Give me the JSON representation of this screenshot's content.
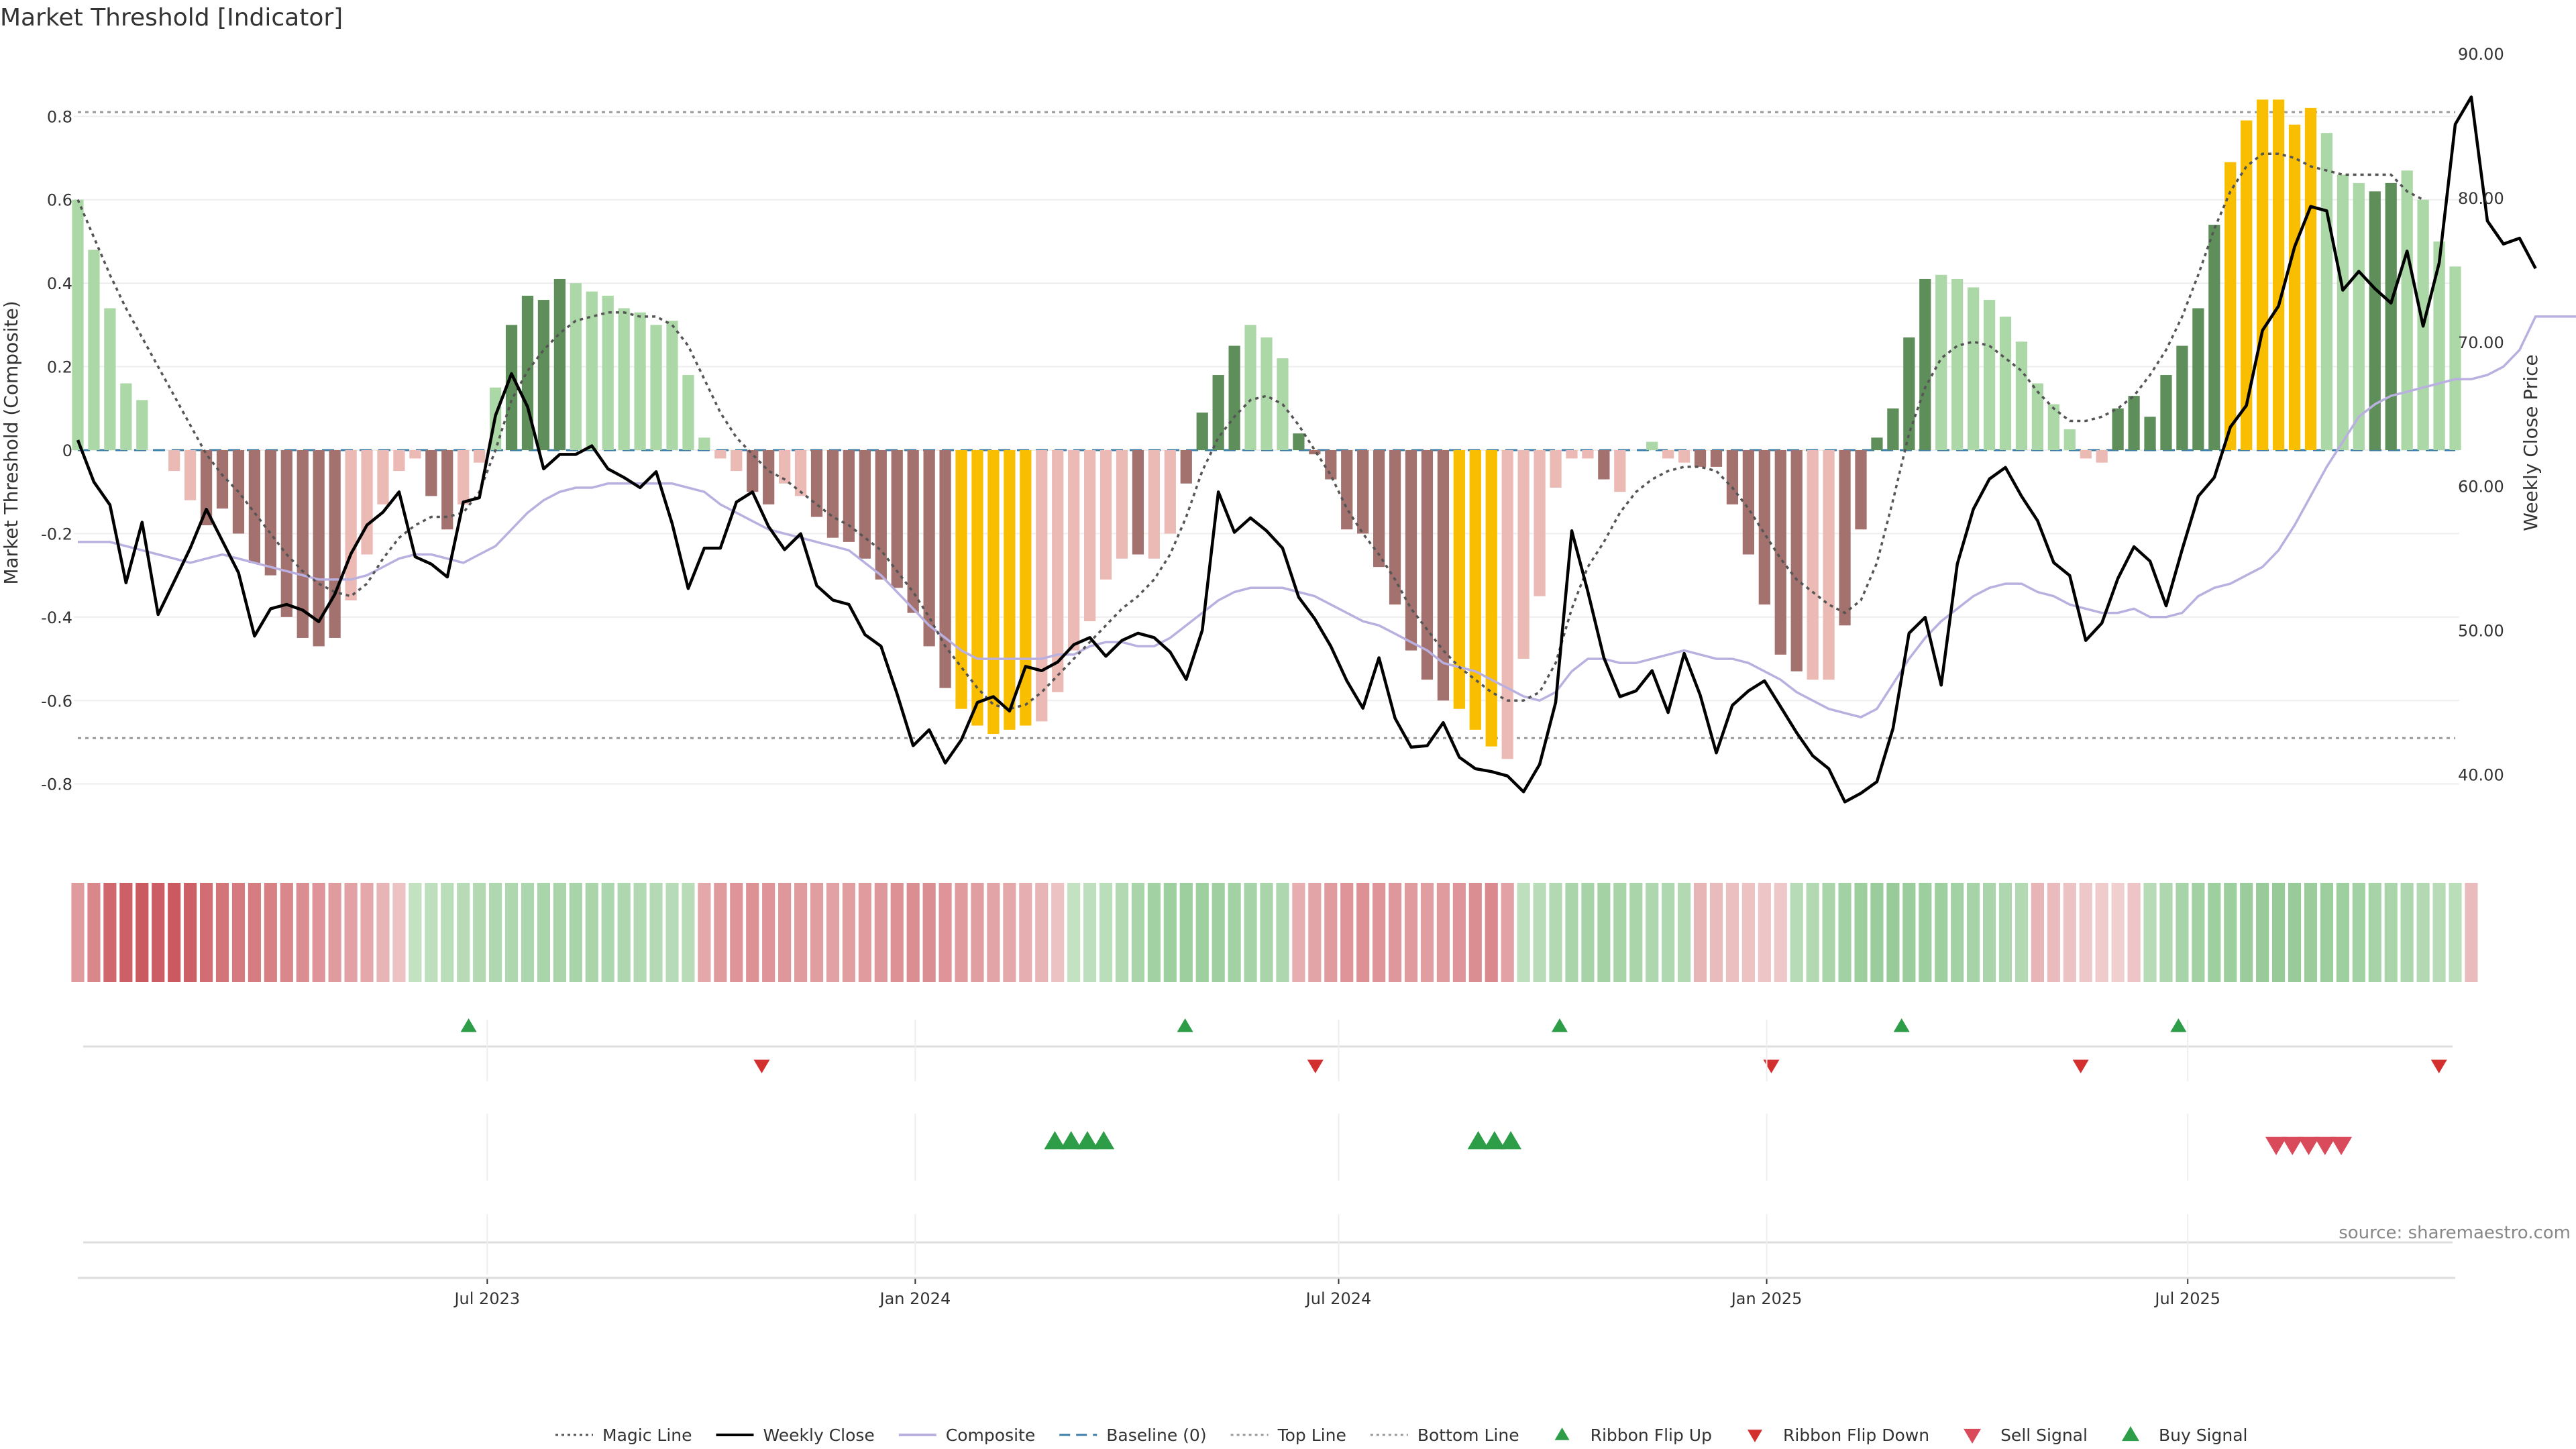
{
  "chart_data": {
    "type": "bar",
    "title": "Market Threshold [Indicator]",
    "ylabel_left": "Market Threshold (Composite)",
    "ylabel_right": "Weekly Close Price",
    "source": "source: sharemaestro.com",
    "x_axis": {
      "start": "2023-01-06",
      "end": "2025-10-24",
      "ticks": [
        {
          "date": "2023-07-01",
          "label": "Jul 2023"
        },
        {
          "date": "2024-01-01",
          "label": "Jan 2024"
        },
        {
          "date": "2024-07-01",
          "label": "Jul 2024"
        },
        {
          "date": "2025-01-01",
          "label": "Jan 2025"
        },
        {
          "date": "2025-07-01",
          "label": "Jul 2025"
        }
      ]
    },
    "y_left": {
      "ylim": [
        -0.95,
        0.95
      ],
      "ticks": [
        "-0.8",
        "-0.6",
        "-0.4",
        "-0.2",
        "0",
        "0.2",
        "0.4",
        "0.6",
        "0.8"
      ]
    },
    "y_right": {
      "ylim": [
        35,
        90
      ],
      "ticks": [
        "40.00",
        "50.00",
        "60.00",
        "70.00",
        "80.00",
        "90.00"
      ]
    },
    "top_line": 0.81,
    "bottom_line": -0.69,
    "legend": [
      {
        "name": "Magic Line",
        "style": "dotted",
        "color": "#555555"
      },
      {
        "name": "Weekly Close",
        "style": "solid",
        "color": "#000000"
      },
      {
        "name": "Composite",
        "style": "solid",
        "color": "#b9b0e0"
      },
      {
        "name": "Baseline (0)",
        "style": "dashed",
        "color": "#3d7fa6"
      },
      {
        "name": "Top Line",
        "style": "dotted",
        "color": "#999999"
      },
      {
        "name": "Bottom Line",
        "style": "dotted",
        "color": "#999999"
      },
      {
        "name": "Ribbon Flip Up",
        "style": "triangle-up",
        "color": "#2e9d48"
      },
      {
        "name": "Ribbon Flip Down",
        "style": "triangle-down",
        "color": "#d32f2f"
      },
      {
        "name": "Sell Signal",
        "style": "triangle-down-big",
        "color": "#d94a5a"
      },
      {
        "name": "Buy Signal",
        "style": "triangle-up-big",
        "color": "#2e9d48"
      }
    ],
    "colors": {
      "strong_pos": "#5e8f5a",
      "weak_pos": "#acd8a8",
      "strong_neg": "#a3716e",
      "weak_neg": "#ecbab5",
      "extreme": "#f9be00"
    },
    "histogram": [
      0.6,
      0.48,
      0.34,
      0.16,
      0.12,
      0.0,
      -0.05,
      -0.12,
      -0.18,
      -0.14,
      -0.2,
      -0.27,
      -0.3,
      -0.4,
      -0.45,
      -0.47,
      -0.45,
      -0.36,
      -0.25,
      -0.13,
      -0.05,
      -0.02,
      -0.11,
      -0.19,
      -0.13,
      -0.03,
      0.15,
      0.3,
      0.37,
      0.36,
      0.41,
      0.4,
      0.38,
      0.37,
      0.34,
      0.33,
      0.3,
      0.31,
      0.18,
      0.03,
      -0.02,
      -0.05,
      -0.1,
      -0.13,
      -0.08,
      -0.11,
      -0.16,
      -0.21,
      -0.22,
      -0.26,
      -0.31,
      -0.33,
      -0.39,
      -0.47,
      -0.57,
      -0.62,
      -0.66,
      -0.68,
      -0.67,
      -0.66,
      -0.65,
      -0.58,
      -0.48,
      -0.41,
      -0.31,
      -0.26,
      -0.25,
      -0.26,
      -0.2,
      -0.08,
      0.09,
      0.18,
      0.25,
      0.3,
      0.27,
      0.22,
      0.04,
      -0.01,
      -0.07,
      -0.19,
      -0.2,
      -0.28,
      -0.37,
      -0.48,
      -0.55,
      -0.6,
      -0.62,
      -0.67,
      -0.71,
      -0.74,
      -0.5,
      -0.35,
      -0.09,
      -0.02,
      -0.02,
      -0.07,
      -0.1,
      0.0,
      0.02,
      -0.02,
      -0.03,
      -0.04,
      -0.04,
      -0.13,
      -0.25,
      -0.37,
      -0.49,
      -0.53,
      -0.55,
      -0.55,
      -0.42,
      -0.19,
      0.03,
      0.1,
      0.27,
      0.41,
      0.42,
      0.41,
      0.39,
      0.36,
      0.32,
      0.26,
      0.16,
      0.11,
      0.05,
      -0.02,
      -0.03,
      0.1,
      0.13,
      0.08,
      0.18,
      0.25,
      0.34,
      0.54,
      0.69,
      0.79,
      0.84,
      0.84,
      0.78,
      0.82,
      0.76,
      0.66,
      0.64,
      0.62,
      0.64,
      0.67,
      0.6,
      0.5,
      0.44
    ],
    "histogram_color_codes": "WWWWWNWWSSSSSSSSSWWWWWSSWWWSSSSWWWWWWWWWWWSSWWSSSSSSSSSEEEEEWWWWWWSWWSSSSWWWSSSSSSSSSSEEEWWWWWWSWSWWWSSSSSSSWWSSSSSSWWWWWWWWWWWSSSSSSSEEEEEEWWWSSWW",
    "weekly_close": [
      63.2,
      60.3,
      58.7,
      53.3,
      57.5,
      51.1,
      53.4,
      55.7,
      58.4,
      56.2,
      54.0,
      49.6,
      51.5,
      51.8,
      51.4,
      50.6,
      52.5,
      55.3,
      57.3,
      58.2,
      59.6,
      55.1,
      54.6,
      53.7,
      58.9,
      59.2,
      64.9,
      67.8,
      65.5,
      61.2,
      62.2,
      62.2,
      62.8,
      61.2,
      60.6,
      59.9,
      61.0,
      57.4,
      52.9,
      55.7,
      55.7,
      58.9,
      59.6,
      57.2,
      55.6,
      56.7,
      53.1,
      52.1,
      51.8,
      49.7,
      48.9,
      45.6,
      42.0,
      43.1,
      40.8,
      42.4,
      45.0,
      45.4,
      44.4,
      47.5,
      47.2,
      47.8,
      49.0,
      49.5,
      48.2,
      49.3,
      49.8,
      49.5,
      48.5,
      46.6,
      50.0,
      59.6,
      56.8,
      57.8,
      56.9,
      55.7,
      52.3,
      50.8,
      48.9,
      46.5,
      44.6,
      48.1,
      43.9,
      41.9,
      42.0,
      43.6,
      41.2,
      40.4,
      40.2,
      39.9,
      38.8,
      40.7,
      45.0,
      56.9,
      52.7,
      48.1,
      45.4,
      45.8,
      47.2,
      44.3,
      48.4,
      45.5,
      41.5,
      44.8,
      45.8,
      46.5,
      44.7,
      42.9,
      41.3,
      40.4,
      38.1,
      38.7,
      39.5,
      43.2,
      49.8,
      50.9,
      46.2,
      54.6,
      58.4,
      60.5,
      61.3,
      59.3,
      57.6,
      54.7,
      53.8,
      49.3,
      50.5,
      53.6,
      55.8,
      54.8,
      51.7,
      55.6,
      59.3,
      60.6,
      64.1,
      65.6,
      70.8,
      72.5,
      76.6,
      79.4,
      79.1,
      73.6,
      74.9,
      73.7,
      72.7,
      76.3,
      71.1,
      75.5,
      85.1,
      87.0,
      78.4,
      76.8,
      77.2,
      75.1
    ],
    "composite": [
      -0.22,
      -0.22,
      -0.22,
      -0.23,
      -0.24,
      -0.25,
      -0.26,
      -0.27,
      -0.26,
      -0.25,
      -0.26,
      -0.27,
      -0.28,
      -0.29,
      -0.3,
      -0.31,
      -0.31,
      -0.31,
      -0.3,
      -0.28,
      -0.26,
      -0.25,
      -0.25,
      -0.26,
      -0.27,
      -0.25,
      -0.23,
      -0.19,
      -0.15,
      -0.12,
      -0.1,
      -0.09,
      -0.09,
      -0.08,
      -0.08,
      -0.08,
      -0.08,
      -0.08,
      -0.09,
      -0.1,
      -0.13,
      -0.15,
      -0.17,
      -0.19,
      -0.2,
      -0.21,
      -0.22,
      -0.23,
      -0.24,
      -0.27,
      -0.3,
      -0.34,
      -0.38,
      -0.42,
      -0.45,
      -0.48,
      -0.5,
      -0.5,
      -0.5,
      -0.5,
      -0.5,
      -0.49,
      -0.49,
      -0.47,
      -0.46,
      -0.46,
      -0.47,
      -0.47,
      -0.45,
      -0.42,
      -0.39,
      -0.36,
      -0.34,
      -0.33,
      -0.33,
      -0.33,
      -0.34,
      -0.35,
      -0.37,
      -0.39,
      -0.41,
      -0.42,
      -0.44,
      -0.46,
      -0.48,
      -0.51,
      -0.52,
      -0.53,
      -0.55,
      -0.57,
      -0.59,
      -0.6,
      -0.58,
      -0.53,
      -0.5,
      -0.5,
      -0.51,
      -0.51,
      -0.5,
      -0.49,
      -0.48,
      -0.49,
      -0.5,
      -0.5,
      -0.51,
      -0.53,
      -0.55,
      -0.58,
      -0.6,
      -0.62,
      -0.63,
      -0.64,
      -0.62,
      -0.56,
      -0.5,
      -0.45,
      -0.41,
      -0.38,
      -0.35,
      -0.33,
      -0.32,
      -0.32,
      -0.34,
      -0.35,
      -0.37,
      -0.38,
      -0.39,
      -0.39,
      -0.38,
      -0.4,
      -0.4,
      -0.39,
      -0.35,
      -0.33,
      -0.32,
      -0.3,
      -0.28,
      -0.24,
      -0.18,
      -0.11,
      -0.04,
      0.02,
      0.08,
      0.11,
      0.13,
      0.14,
      0.15,
      0.16,
      0.17,
      0.17,
      0.18,
      0.2,
      0.24,
      0.32,
      0.32,
      0.32,
      0.32
    ],
    "magic_line": [
      0.6,
      0.51,
      0.42,
      0.34,
      0.27,
      0.2,
      0.13,
      0.06,
      -0.01,
      -0.06,
      -0.1,
      -0.15,
      -0.2,
      -0.25,
      -0.29,
      -0.32,
      -0.34,
      -0.35,
      -0.32,
      -0.26,
      -0.21,
      -0.18,
      -0.16,
      -0.16,
      -0.15,
      -0.1,
      0.0,
      0.12,
      0.19,
      0.24,
      0.28,
      0.31,
      0.32,
      0.33,
      0.33,
      0.32,
      0.32,
      0.3,
      0.25,
      0.17,
      0.09,
      0.03,
      -0.01,
      -0.05,
      -0.07,
      -0.1,
      -0.13,
      -0.16,
      -0.18,
      -0.21,
      -0.24,
      -0.29,
      -0.34,
      -0.4,
      -0.47,
      -0.52,
      -0.57,
      -0.61,
      -0.62,
      -0.61,
      -0.58,
      -0.54,
      -0.5,
      -0.46,
      -0.42,
      -0.38,
      -0.35,
      -0.31,
      -0.25,
      -0.16,
      -0.05,
      0.03,
      0.08,
      0.12,
      0.13,
      0.11,
      0.06,
      0.0,
      -0.06,
      -0.14,
      -0.2,
      -0.25,
      -0.31,
      -0.38,
      -0.43,
      -0.48,
      -0.52,
      -0.55,
      -0.58,
      -0.6,
      -0.6,
      -0.58,
      -0.51,
      -0.38,
      -0.28,
      -0.22,
      -0.15,
      -0.1,
      -0.07,
      -0.05,
      -0.04,
      -0.04,
      -0.05,
      -0.09,
      -0.14,
      -0.2,
      -0.26,
      -0.31,
      -0.34,
      -0.37,
      -0.39,
      -0.36,
      -0.27,
      -0.12,
      0.04,
      0.15,
      0.22,
      0.25,
      0.26,
      0.25,
      0.22,
      0.19,
      0.14,
      0.1,
      0.07,
      0.07,
      0.08,
      0.1,
      0.13,
      0.18,
      0.24,
      0.32,
      0.42,
      0.53,
      0.62,
      0.68,
      0.71,
      0.71,
      0.7,
      0.68,
      0.67,
      0.66,
      0.66,
      0.66,
      0.66,
      0.62,
      0.6
    ],
    "ribbon": [
      -0.45,
      -0.6,
      -0.85,
      -0.9,
      -0.95,
      -0.92,
      -0.95,
      -0.9,
      -0.8,
      -0.75,
      -0.7,
      -0.68,
      -0.65,
      -0.6,
      -0.55,
      -0.5,
      -0.45,
      -0.4,
      -0.35,
      -0.25,
      -0.15,
      0.25,
      0.3,
      0.35,
      0.4,
      0.45,
      0.48,
      0.5,
      0.52,
      0.55,
      0.55,
      0.56,
      0.55,
      0.52,
      0.5,
      0.45,
      0.42,
      0.4,
      0.38,
      -0.35,
      -0.45,
      -0.5,
      -0.52,
      -0.5,
      -0.48,
      -0.45,
      -0.42,
      -0.4,
      -0.42,
      -0.45,
      -0.48,
      -0.52,
      -0.55,
      -0.55,
      -0.5,
      -0.45,
      -0.42,
      -0.38,
      -0.35,
      -0.3,
      -0.25,
      -0.15,
      0.25,
      0.3,
      0.35,
      0.45,
      0.55,
      0.65,
      0.7,
      0.72,
      0.7,
      0.68,
      0.65,
      0.6,
      0.55,
      0.5,
      -0.3,
      -0.38,
      -0.45,
      -0.5,
      -0.52,
      -0.5,
      -0.48,
      -0.45,
      -0.42,
      -0.45,
      -0.5,
      -0.55,
      -0.58,
      -0.4,
      0.3,
      0.38,
      0.45,
      0.55,
      0.6,
      0.62,
      0.58,
      0.55,
      0.5,
      0.48,
      0.45,
      -0.25,
      -0.2,
      -0.18,
      -0.15,
      -0.12,
      -0.1,
      0.4,
      0.45,
      0.55,
      0.65,
      0.72,
      0.75,
      0.78,
      0.75,
      0.72,
      0.7,
      0.65,
      0.6,
      0.55,
      0.5,
      0.45,
      -0.25,
      -0.2,
      -0.15,
      -0.1,
      -0.08,
      -0.05,
      -0.12,
      0.4,
      0.5,
      0.6,
      0.65,
      0.7,
      0.72,
      0.75,
      0.78,
      0.8,
      0.78,
      0.75,
      0.72,
      0.7,
      0.65,
      0.6,
      0.55,
      0.5,
      0.45,
      0.4,
      0.35,
      -0.2
    ],
    "ribbon_colors": {
      "pos_dark": "#86c288",
      "pos_light": "#d6ecd5",
      "neg_dark": "#c9535a",
      "neg_light": "#f2d5d5"
    },
    "ribbon_flip_up_dates": [
      "2023-06-23",
      "2024-04-26",
      "2024-10-04",
      "2025-02-28",
      "2025-06-27"
    ],
    "ribbon_flip_down_dates": [
      "2023-10-27",
      "2024-06-21",
      "2025-01-03",
      "2025-05-16",
      "2025-10-17"
    ],
    "buy_signal_dates": [
      "2024-03-01",
      "2024-03-08",
      "2024-03-15",
      "2024-03-22",
      "2024-08-30",
      "2024-09-06",
      "2024-09-13"
    ],
    "sell_signal_dates": [
      "2025-08-08",
      "2025-08-15",
      "2025-08-22",
      "2025-08-29",
      "2025-09-05"
    ]
  }
}
